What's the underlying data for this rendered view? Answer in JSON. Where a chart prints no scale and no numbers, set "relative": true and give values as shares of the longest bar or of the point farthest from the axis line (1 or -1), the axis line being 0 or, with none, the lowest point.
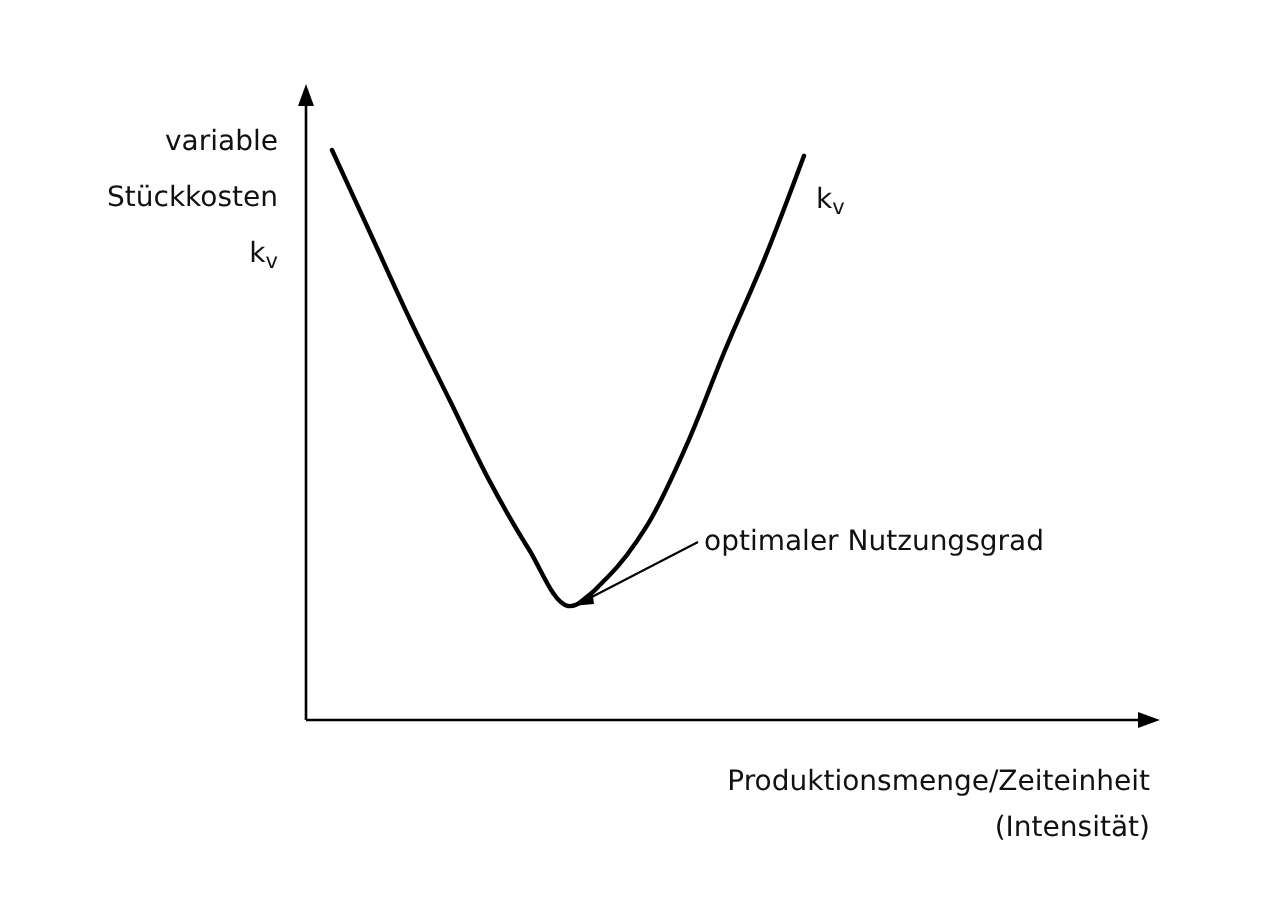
{
  "chart_data": {
    "type": "line",
    "relative": true,
    "ylabel": "variable\nStückkosten\nk$_{v}$",
    "xlabel": "Produktionsmenge/Zeiteinheit\n(Intensität)",
    "categories": [
      null,
      null,
      null,
      null,
      null,
      null,
      null,
      null,
      null,
      null,
      null,
      null,
      null,
      null,
      null,
      null,
      null,
      null,
      null,
      null,
      null,
      null
    ],
    "series": [
      {
        "name": "k$_{v}$",
        "color": "#000000",
        "values": [
          1,
          0.85,
          0.7,
          0.56,
          0.42,
          0.3,
          0.2,
          0.25,
          0.34,
          0.48,
          0.65,
          0.81,
          0.99,
          null,
          null,
          null,
          null,
          null,
          null,
          null,
          null,
          null
        ]
      }
    ],
    "annotations": [
      "optimaler Nutzungsgrad"
    ],
    "legend": false,
    "marker": "none",
    "line_style": "solid"
  }
}
